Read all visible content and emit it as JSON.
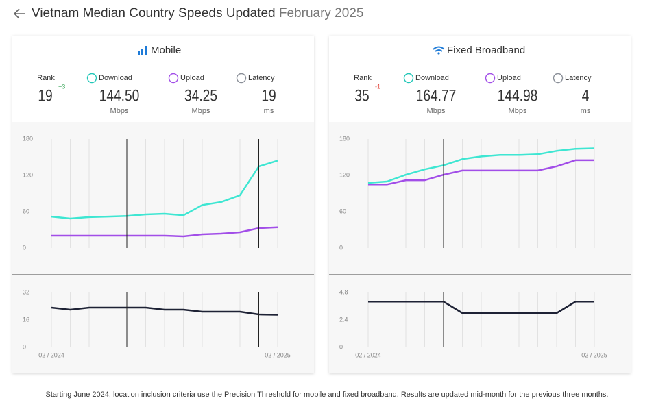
{
  "header": {
    "title": "Vietnam Median Country Speeds Updated",
    "date": "February 2025"
  },
  "panels": [
    {
      "title": "Mobile",
      "rank": {
        "label": "Rank",
        "value": "19",
        "change": "+3",
        "change_color": "#3aa65a"
      },
      "metrics": [
        {
          "label": "Download",
          "value": "144.50",
          "unit": "Mbps",
          "color": "#22c7b8"
        },
        {
          "label": "Upload",
          "value": "34.25",
          "unit": "Mbps",
          "color": "#a24ee8"
        },
        {
          "label": "Latency",
          "value": "19",
          "unit": "ms",
          "color": "#8a8f98"
        }
      ],
      "speed_chart": {
        "type": "line",
        "categories": [
          "02 / 2024",
          null,
          null,
          null,
          null,
          null,
          null,
          null,
          null,
          null,
          null,
          null,
          "02 / 2025"
        ],
        "ylim": [
          0,
          180
        ],
        "yticks": [
          0,
          60,
          120,
          180
        ],
        "series": [
          {
            "color": "#3ee6d2",
            "values": [
              52,
              48.7,
              51,
              52,
              53,
              55.5,
              56.6,
              54,
              71,
              76,
              87,
              134.7,
              144.5
            ]
          },
          {
            "color": "#a24ee8",
            "values": [
              20.4,
              20.4,
              20.4,
              20.4,
              20.4,
              20.4,
              20.4,
              19.2,
              22.6,
              23.8,
              26,
              32.8,
              34.25
            ]
          }
        ]
      },
      "latency_chart": {
        "type": "line",
        "ylim": [
          0,
          32
        ],
        "yticks": [
          0,
          16,
          32
        ],
        "series": [
          {
            "color": "#1e2235",
            "values": [
              23.2,
              22,
              23.2,
              23.2,
              23.2,
              23.2,
              22,
              22,
              20.8,
              20.8,
              20.8,
              19.2,
              19
            ]
          }
        ]
      }
    },
    {
      "title": "Fixed Broadband",
      "rank": {
        "label": "Rank",
        "value": "35",
        "change": "-1",
        "change_color": "#e0443a"
      },
      "metrics": [
        {
          "label": "Download",
          "value": "164.77",
          "unit": "Mbps",
          "color": "#22c7b8"
        },
        {
          "label": "Upload",
          "value": "144.98",
          "unit": "Mbps",
          "color": "#a24ee8"
        },
        {
          "label": "Latency",
          "value": "4",
          "unit": "ms",
          "color": "#8a8f98"
        }
      ],
      "speed_chart": {
        "type": "line",
        "categories": [
          "02 / 2024",
          null,
          null,
          null,
          null,
          null,
          null,
          null,
          null,
          null,
          null,
          null,
          "02 / 2025"
        ],
        "ylim": [
          0,
          180
        ],
        "yticks": [
          0,
          60,
          120,
          180
        ],
        "series": [
          {
            "color": "#3ee6d2",
            "values": [
              107.5,
              109.8,
              121,
              130,
              136.6,
              146.8,
              151.3,
              153.6,
              153.6,
              154.7,
              160.4,
              163.8,
              164.77
            ]
          },
          {
            "color": "#a24ee8",
            "values": [
              105,
              105,
              112,
              112,
              121,
              128,
              128,
              128,
              128,
              128,
              135,
              145,
              145
            ]
          }
        ]
      },
      "latency_chart": {
        "type": "line",
        "ylim": [
          0,
          4.8
        ],
        "yticks": [
          0,
          2.4,
          4.8
        ],
        "series": [
          {
            "color": "#1e2235",
            "values": [
              4,
              4,
              4,
              4,
              4,
              3,
              3,
              3,
              3,
              3,
              3,
              4,
              4
            ]
          }
        ]
      }
    }
  ],
  "footnote": "Starting June 2024, location inclusion criteria use the Precision Threshold for mobile and fixed broadband. Results are updated mid-month for the previous three months."
}
